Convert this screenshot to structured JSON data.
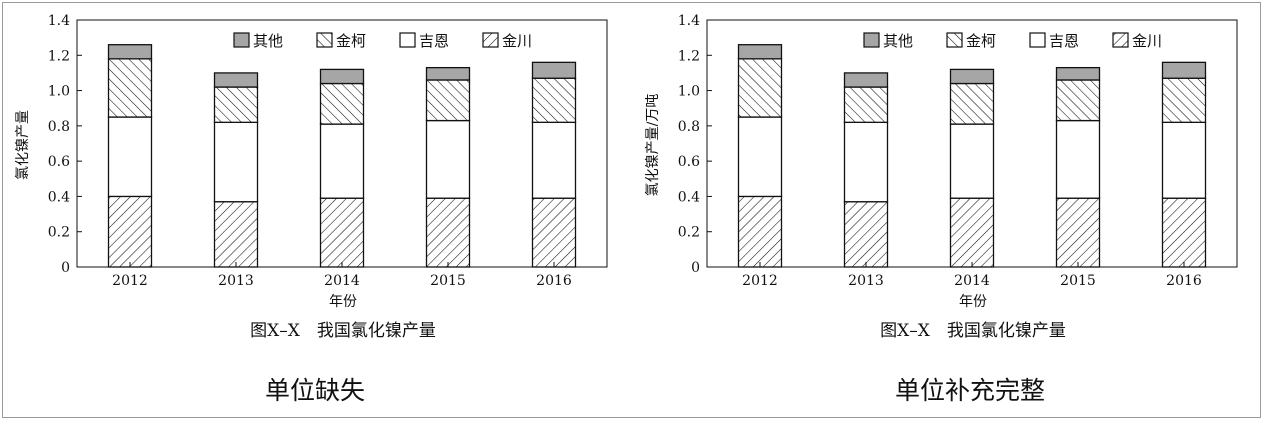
{
  "chart_data": [
    {
      "type": "bar",
      "stacked": true,
      "categories": [
        "2012",
        "2013",
        "2014",
        "2015",
        "2016"
      ],
      "series": [
        {
          "name": "金川",
          "values": [
            0.4,
            0.37,
            0.39,
            0.39,
            0.39
          ],
          "pattern": "back-hatch"
        },
        {
          "name": "吉恩",
          "values": [
            0.45,
            0.45,
            0.42,
            0.44,
            0.43
          ],
          "pattern": "white"
        },
        {
          "name": "金柯",
          "values": [
            0.33,
            0.2,
            0.23,
            0.23,
            0.25
          ],
          "pattern": "forward-hatch"
        },
        {
          "name": "其他",
          "values": [
            0.08,
            0.08,
            0.08,
            0.07,
            0.09
          ],
          "pattern": "gray"
        }
      ],
      "legend_order": [
        "其他",
        "金柯",
        "吉恩",
        "金川"
      ],
      "legend_position": "top",
      "xlabel": "年份",
      "ylabel": "氯化镍产量",
      "ylim": [
        0,
        1.4
      ],
      "yticks": [
        "0",
        "0.2",
        "0.4",
        "0.6",
        "0.8",
        "1.0",
        "1.2",
        "1.4"
      ],
      "grid": false,
      "caption": "图X–X　我国氯化镍产量",
      "note": "单位缺失"
    },
    {
      "type": "bar",
      "stacked": true,
      "categories": [
        "2012",
        "2013",
        "2014",
        "2015",
        "2016"
      ],
      "series": [
        {
          "name": "金川",
          "values": [
            0.4,
            0.37,
            0.39,
            0.39,
            0.39
          ],
          "pattern": "back-hatch"
        },
        {
          "name": "吉恩",
          "values": [
            0.45,
            0.45,
            0.42,
            0.44,
            0.43
          ],
          "pattern": "white"
        },
        {
          "name": "金柯",
          "values": [
            0.33,
            0.2,
            0.23,
            0.23,
            0.25
          ],
          "pattern": "forward-hatch"
        },
        {
          "name": "其他",
          "values": [
            0.08,
            0.08,
            0.08,
            0.07,
            0.09
          ],
          "pattern": "gray"
        }
      ],
      "legend_order": [
        "其他",
        "金柯",
        "吉恩",
        "金川"
      ],
      "legend_position": "top",
      "xlabel": "年份",
      "ylabel": "氯化镍产量/万吨",
      "ylim": [
        0,
        1.4
      ],
      "yticks": [
        "0",
        "0.2",
        "0.4",
        "0.6",
        "0.8",
        "1.0",
        "1.2",
        "1.4"
      ],
      "grid": false,
      "caption": "图X–X　我国氯化镍产量",
      "note": "单位补充完整"
    }
  ],
  "colors": {
    "gray_fill": "#a6a6a6",
    "ink": "#111111",
    "frame": "#9a9a9a"
  }
}
